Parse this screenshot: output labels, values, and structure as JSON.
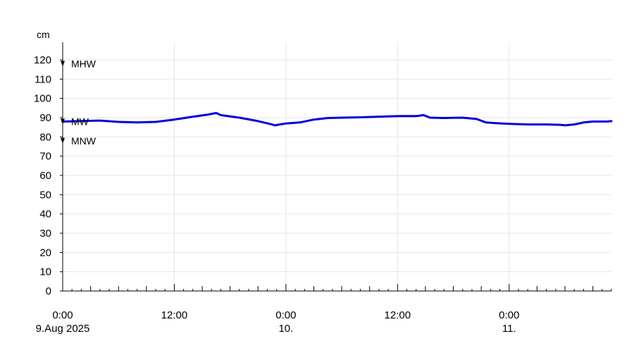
{
  "chart_data": {
    "type": "line",
    "ylabel": "cm",
    "ylim": [
      0,
      120
    ],
    "grid": true,
    "y_ticks": [
      0,
      10,
      20,
      30,
      40,
      50,
      60,
      70,
      80,
      90,
      100,
      110,
      120
    ],
    "x_range_hours": [
      0,
      59
    ],
    "x_major_ticks": [
      {
        "hour": 0,
        "line1": "0:00",
        "line2": "9.Aug 2025"
      },
      {
        "hour": 12,
        "line1": "12:00",
        "line2": ""
      },
      {
        "hour": 24,
        "line1": "0:00",
        "line2": "10."
      },
      {
        "hour": 36,
        "line1": "12:00",
        "line2": ""
      },
      {
        "hour": 48,
        "line1": "0:00",
        "line2": "11."
      }
    ],
    "reference_levels": [
      {
        "label": "MHW",
        "value": 118
      },
      {
        "label": "MW",
        "value": 88
      },
      {
        "label": "MNW",
        "value": 78
      }
    ],
    "series": [
      {
        "color": "#0000dd",
        "points": [
          [
            0,
            88
          ],
          [
            2,
            88.2
          ],
          [
            4,
            88.5
          ],
          [
            6,
            87.8
          ],
          [
            8,
            87.5
          ],
          [
            10,
            87.8
          ],
          [
            12,
            89
          ],
          [
            14,
            90.5
          ],
          [
            15.5,
            91.5
          ],
          [
            16.5,
            92.4
          ],
          [
            17,
            91.3
          ],
          [
            19,
            90
          ],
          [
            21,
            88.2
          ],
          [
            22.5,
            86.5
          ],
          [
            22.8,
            86
          ],
          [
            24,
            87
          ],
          [
            25.5,
            87.5
          ],
          [
            27,
            89
          ],
          [
            28.5,
            89.8
          ],
          [
            30,
            90
          ],
          [
            32,
            90.2
          ],
          [
            34,
            90.5
          ],
          [
            36,
            90.8
          ],
          [
            38,
            90.8
          ],
          [
            38.8,
            91.3
          ],
          [
            39.5,
            90
          ],
          [
            41,
            89.8
          ],
          [
            43,
            90
          ],
          [
            44.5,
            89.3
          ],
          [
            45.5,
            87.5
          ],
          [
            46.5,
            87.2
          ],
          [
            48,
            86.8
          ],
          [
            50,
            86.5
          ],
          [
            52,
            86.5
          ],
          [
            53.5,
            86.3
          ],
          [
            54,
            86
          ],
          [
            55,
            86.5
          ],
          [
            56,
            87.5
          ],
          [
            57,
            88
          ],
          [
            58.5,
            88
          ],
          [
            59,
            88.2
          ]
        ]
      }
    ]
  }
}
